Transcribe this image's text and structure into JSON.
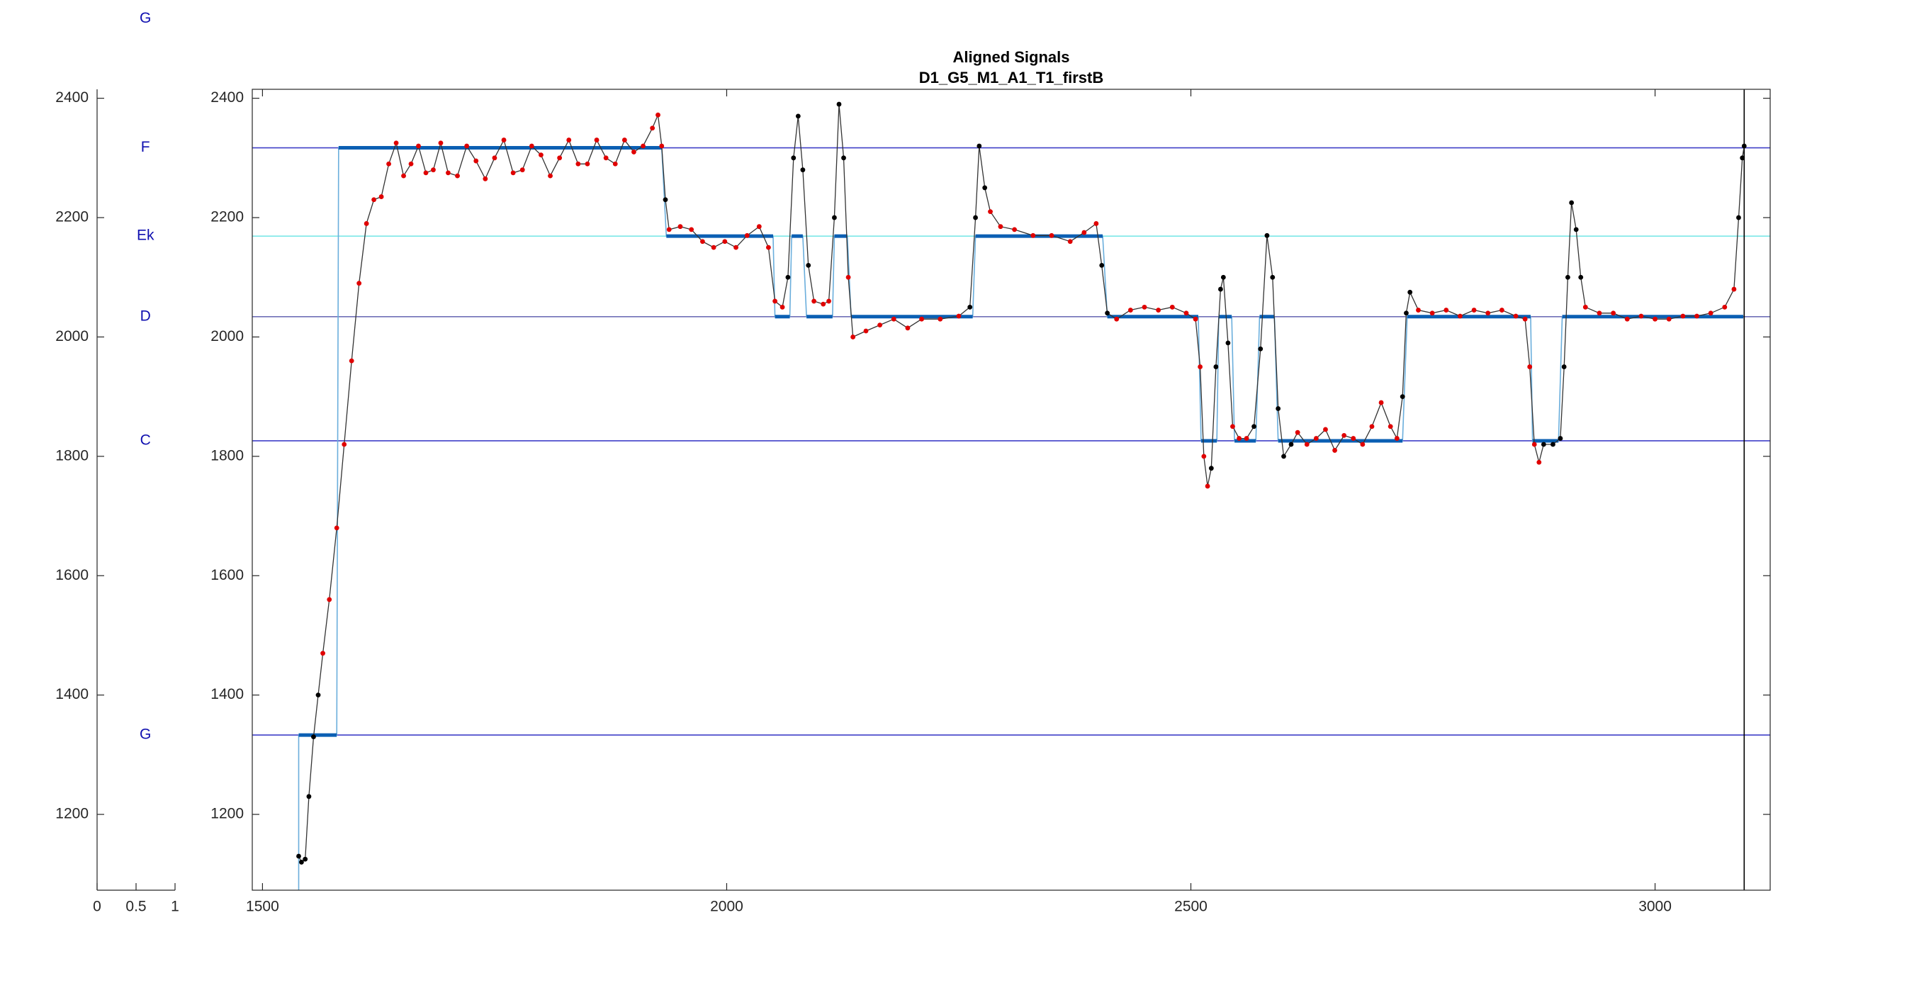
{
  "chart_data": [
    {
      "type": "labels",
      "xlim": [
        0,
        1
      ],
      "xticks": [
        0,
        0.5,
        1
      ],
      "ylim": [
        1073,
        2415
      ],
      "yticks": [
        1200,
        1400,
        1600,
        1800,
        2000,
        2200,
        2400
      ],
      "color": "#1010b0",
      "labels": [
        {
          "text": "G",
          "value": 2533
        },
        {
          "text": "F",
          "value": 2317
        },
        {
          "text": "Ek",
          "value": 2169
        },
        {
          "text": "D",
          "value": 2034
        },
        {
          "text": "C",
          "value": 1826
        },
        {
          "text": "G",
          "value": 1333
        }
      ]
    },
    {
      "type": "line",
      "title": "Aligned Signals",
      "subtitle": "D1_G5_M1_A1_T1_firstB",
      "xlim": [
        1489,
        3124
      ],
      "xticks": [
        1500,
        2000,
        2500,
        3000
      ],
      "ylim": [
        1073,
        2415
      ],
      "yticks": [
        1200,
        1400,
        1600,
        1800,
        2000,
        2200,
        2400
      ],
      "reference_lines": [
        {
          "value": 2317,
          "color": "#4040c8"
        },
        {
          "value": 2169,
          "color": "#7de8e8"
        },
        {
          "value": 2034,
          "color": "#7070b8"
        },
        {
          "value": 1826,
          "color": "#4040c8"
        },
        {
          "value": 1333,
          "color": "#4040c8"
        }
      ],
      "target": {
        "color": "#0b5fb3",
        "connector_color": "#6aaedc",
        "x": [
          1539,
          1582,
          1935,
          2052,
          2070,
          2086,
          2116,
          2134,
          2268,
          2410,
          2511,
          2530,
          2547,
          2574,
          2594,
          2733,
          2868,
          2900
        ],
        "x_end": [
          1580,
          1930,
          2050,
          2068,
          2082,
          2114,
          2130,
          2265,
          2405,
          2508,
          2528,
          2544,
          2570,
          2590,
          2728,
          2866,
          2896,
          3095
        ],
        "values": [
          1333,
          2317,
          2169,
          2034,
          2169,
          2034,
          2169,
          2034,
          2169,
          2034,
          1826,
          2034,
          1826,
          2034,
          1826,
          2034,
          1826,
          2034
        ]
      },
      "vlines": [
        {
          "x": 3096,
          "color": "#000000"
        }
      ],
      "series": [
        {
          "color": "#333333",
          "x": [
            1539,
            1542,
            1546,
            1550,
            1555,
            1560,
            1565,
            1572,
            1580,
            1588,
            1596,
            1604,
            1612,
            1620,
            1628,
            1636,
            1644,
            1652,
            1660,
            1668,
            1676,
            1684,
            1692,
            1700,
            1710,
            1720,
            1730,
            1740,
            1750,
            1760,
            1770,
            1780,
            1790,
            1800,
            1810,
            1820,
            1830,
            1840,
            1850,
            1860,
            1870,
            1880,
            1890,
            1900,
            1910,
            1920,
            1926,
            1930,
            1934,
            1938,
            1950,
            1962,
            1974,
            1986,
            1998,
            2010,
            2022,
            2035,
            2045,
            2052,
            2060,
            2066,
            2072,
            2077,
            2082,
            2088,
            2094,
            2104,
            2110,
            2116,
            2121,
            2126,
            2131,
            2136,
            2150,
            2165,
            2180,
            2195,
            2210,
            2230,
            2250,
            2262,
            2268,
            2272,
            2278,
            2284,
            2295,
            2310,
            2330,
            2350,
            2370,
            2385,
            2398,
            2404,
            2410,
            2420,
            2435,
            2450,
            2465,
            2480,
            2495,
            2505,
            2510,
            2514,
            2518,
            2522,
            2527,
            2532,
            2535,
            2540,
            2545,
            2552,
            2560,
            2568,
            2575,
            2582,
            2588,
            2594,
            2600,
            2608,
            2615,
            2625,
            2635,
            2645,
            2655,
            2665,
            2675,
            2685,
            2695,
            2705,
            2715,
            2722,
            2728,
            2732,
            2736,
            2745,
            2760,
            2775,
            2790,
            2805,
            2820,
            2835,
            2850,
            2860,
            2865,
            2870,
            2875,
            2880,
            2890,
            2898,
            2902,
            2906,
            2910,
            2915,
            2920,
            2925,
            2940,
            2955,
            2970,
            2985,
            3000,
            3015,
            3030,
            3045,
            3060,
            3075,
            3085,
            3090,
            3094,
            3096
          ],
          "values": [
            1130,
            1120,
            1125,
            1230,
            1330,
            1400,
            1470,
            1560,
            1680,
            1820,
            1960,
            2090,
            2190,
            2230,
            2235,
            2290,
            2325,
            2270,
            2290,
            2320,
            2275,
            2280,
            2325,
            2275,
            2270,
            2320,
            2295,
            2265,
            2300,
            2330,
            2275,
            2280,
            2320,
            2305,
            2270,
            2300,
            2330,
            2290,
            2290,
            2330,
            2300,
            2290,
            2330,
            2310,
            2320,
            2350,
            2372,
            2320,
            2230,
            2180,
            2185,
            2180,
            2160,
            2150,
            2160,
            2150,
            2170,
            2185,
            2150,
            2060,
            2050,
            2100,
            2300,
            2370,
            2280,
            2120,
            2060,
            2055,
            2060,
            2200,
            2390,
            2300,
            2100,
            2000,
            2010,
            2020,
            2030,
            2015,
            2030,
            2030,
            2035,
            2050,
            2200,
            2320,
            2250,
            2210,
            2185,
            2180,
            2170,
            2170,
            2160,
            2175,
            2190,
            2120,
            2040,
            2030,
            2045,
            2050,
            2045,
            2050,
            2040,
            2030,
            1950,
            1800,
            1750,
            1780,
            1950,
            2080,
            2100,
            1990,
            1850,
            1830,
            1830,
            1850,
            1980,
            2170,
            2100,
            1880,
            1800,
            1820,
            1840,
            1820,
            1830,
            1845,
            1810,
            1835,
            1830,
            1820,
            1850,
            1890,
            1850,
            1830,
            1900,
            2040,
            2075,
            2045,
            2040,
            2045,
            2035,
            2045,
            2040,
            2045,
            2035,
            2030,
            1950,
            1820,
            1790,
            1820,
            1820,
            1830,
            1950,
            2100,
            2225,
            2180,
            2100,
            2050,
            2040,
            2040,
            2030,
            2035,
            2030,
            2030,
            2035,
            2035,
            2040,
            2050,
            2080,
            2200,
            2300,
            2320
          ],
          "point_colors": [
            "#000000",
            "#000000",
            "#000000",
            "#000000",
            "#000000",
            "#000000",
            "#e00000",
            "#e00000",
            "#e00000",
            "#e00000",
            "#e00000",
            "#e00000",
            "#e00000",
            "#e00000",
            "#e00000",
            "#e00000",
            "#e00000",
            "#e00000",
            "#e00000",
            "#e00000",
            "#e00000",
            "#e00000",
            "#e00000",
            "#e00000",
            "#e00000",
            "#e00000",
            "#e00000",
            "#e00000",
            "#e00000",
            "#e00000",
            "#e00000",
            "#e00000",
            "#e00000",
            "#e00000",
            "#e00000",
            "#e00000",
            "#e00000",
            "#e00000",
            "#e00000",
            "#e00000",
            "#e00000",
            "#e00000",
            "#e00000",
            "#e00000",
            "#e00000",
            "#e00000",
            "#e00000",
            "#e00000",
            "#000000",
            "#e00000",
            "#e00000",
            "#e00000",
            "#e00000",
            "#e00000",
            "#e00000",
            "#e00000",
            "#e00000",
            "#e00000",
            "#e00000",
            "#e00000",
            "#e00000",
            "#000000",
            "#000000",
            "#000000",
            "#000000",
            "#000000",
            "#e00000",
            "#e00000",
            "#e00000",
            "#000000",
            "#000000",
            "#000000",
            "#e00000",
            "#e00000",
            "#e00000",
            "#e00000",
            "#e00000",
            "#e00000",
            "#e00000",
            "#e00000",
            "#e00000",
            "#000000",
            "#000000",
            "#000000",
            "#000000",
            "#e00000",
            "#e00000",
            "#e00000",
            "#e00000",
            "#e00000",
            "#e00000",
            "#e00000",
            "#e00000",
            "#000000",
            "#000000",
            "#e00000",
            "#e00000",
            "#e00000",
            "#e00000",
            "#e00000",
            "#e00000",
            "#e00000",
            "#e00000",
            "#e00000",
            "#e00000",
            "#000000",
            "#000000",
            "#000000",
            "#000000",
            "#000000",
            "#e00000",
            "#e00000",
            "#e00000",
            "#000000",
            "#000000",
            "#000000",
            "#000000",
            "#000000",
            "#000000",
            "#000000",
            "#e00000",
            "#e00000",
            "#e00000",
            "#e00000",
            "#e00000",
            "#e00000",
            "#e00000",
            "#e00000",
            "#e00000",
            "#e00000",
            "#e00000",
            "#e00000",
            "#000000",
            "#000000",
            "#000000",
            "#e00000",
            "#e00000",
            "#e00000",
            "#e00000",
            "#e00000",
            "#e00000",
            "#e00000",
            "#e00000",
            "#e00000",
            "#e00000",
            "#e00000",
            "#e00000",
            "#000000",
            "#000000",
            "#000000",
            "#000000",
            "#000000",
            "#000000",
            "#000000",
            "#000000",
            "#e00000",
            "#e00000",
            "#e00000",
            "#e00000",
            "#e00000",
            "#e00000",
            "#e00000",
            "#e00000",
            "#e00000",
            "#e00000",
            "#e00000",
            "#e00000",
            "#000000",
            "#000000",
            "#000000",
            "#000000"
          ]
        }
      ]
    }
  ]
}
